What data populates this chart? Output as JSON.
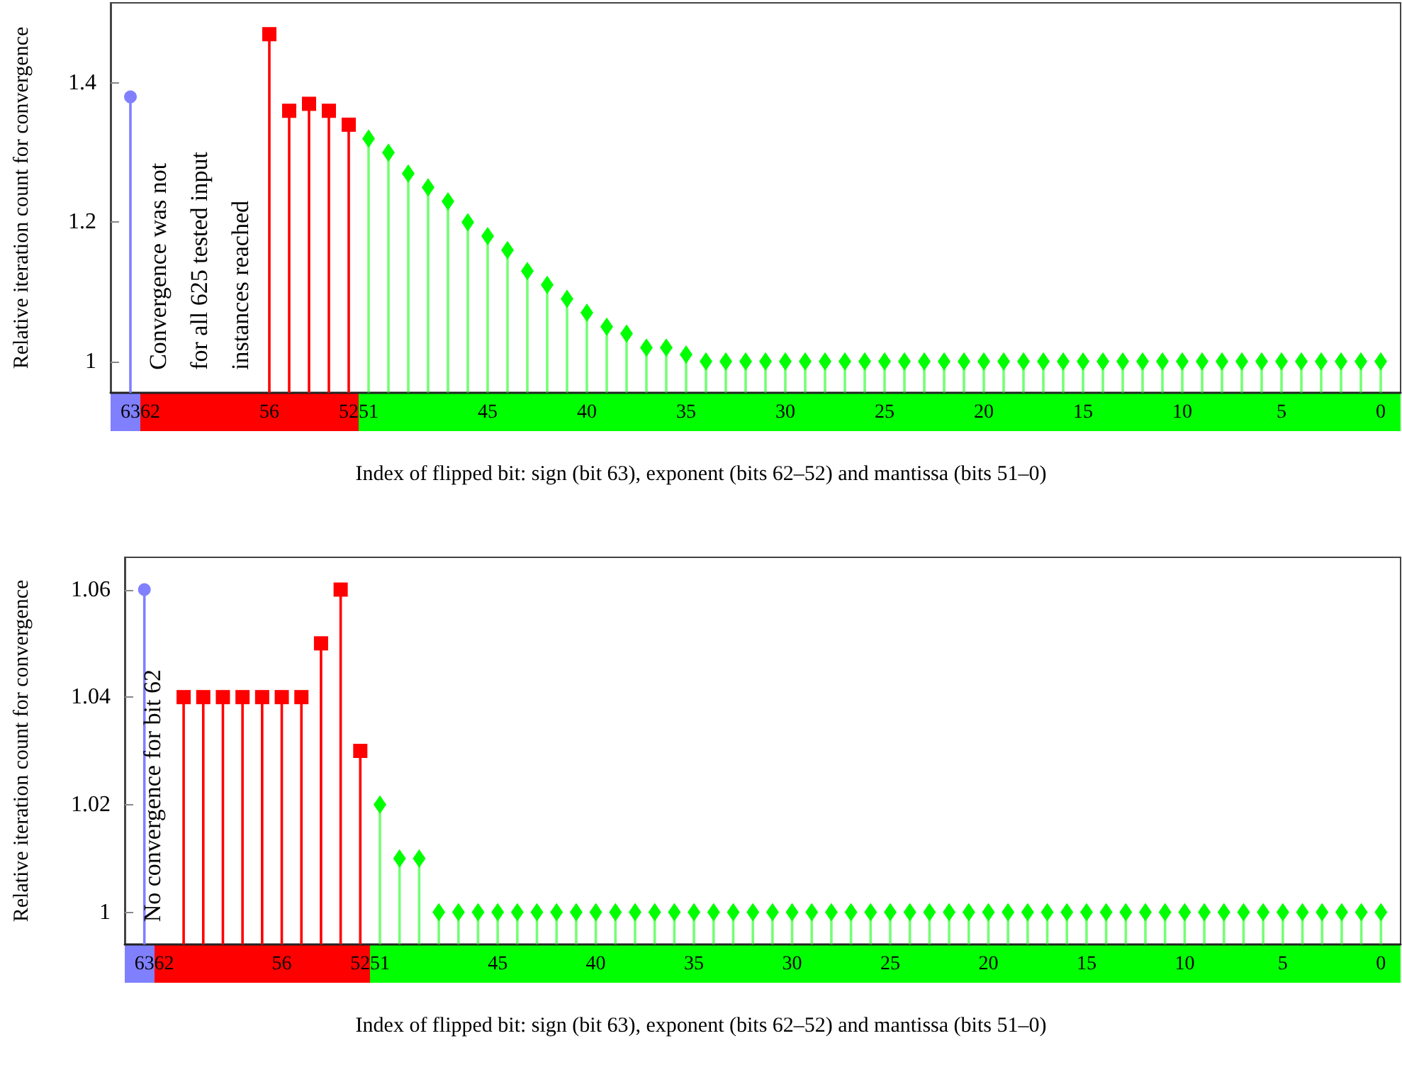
{
  "chart_data": [
    {
      "type": "lollipop",
      "xlabel": "Index of flipped bit: sign (bit 63), exponent (bits 62–52) and mantissa (bits 51–0)",
      "ylabel": "Relative iteration count for convergence",
      "annotations": [
        "Convergence was not\nfor all 625 tested input\ninstances reached"
      ],
      "xlim": [
        64,
        -1
      ],
      "xticks": [
        63,
        62,
        56,
        52,
        51,
        45,
        40,
        35,
        30,
        25,
        20,
        15,
        10,
        5,
        0
      ],
      "ylim": [
        0.955,
        1.515
      ],
      "yticks": [
        1,
        1.2,
        1.4
      ],
      "grid": false,
      "series": [
        {
          "color": "#8080ff",
          "marker": "circle",
          "x": [
            63
          ],
          "values": [
            1.38
          ]
        },
        {
          "color": "#ff0000",
          "marker": "square",
          "x": [
            56,
            55,
            54,
            53,
            52
          ],
          "values": [
            1.47,
            1.36,
            1.37,
            1.36,
            1.34
          ]
        },
        {
          "color": "#00ff00",
          "marker": "diamond",
          "x": [
            51,
            50,
            49,
            48,
            47,
            46,
            45,
            44,
            43,
            42,
            41,
            40,
            39,
            38,
            37,
            36,
            35,
            34,
            33,
            32,
            31,
            30,
            29,
            28,
            27,
            26,
            25,
            24,
            23,
            22,
            21,
            20,
            19,
            18,
            17,
            16,
            15,
            14,
            13,
            12,
            11,
            10,
            9,
            8,
            7,
            6,
            5,
            4,
            3,
            2,
            1,
            0
          ],
          "values": [
            1.32,
            1.3,
            1.27,
            1.25,
            1.23,
            1.2,
            1.18,
            1.16,
            1.13,
            1.11,
            1.09,
            1.07,
            1.05,
            1.04,
            1.02,
            1.02,
            1.01,
            1.0,
            1.0,
            1.0,
            1.0,
            1.0,
            1.0,
            1.0,
            1.0,
            1.0,
            1.0,
            1.0,
            1.0,
            1.0,
            1.0,
            1.0,
            1.0,
            1.0,
            1.0,
            1.0,
            1.0,
            1.0,
            1.0,
            1.0,
            1.0,
            1.0,
            1.0,
            1.0,
            1.0,
            1.0,
            1.0,
            1.0,
            1.0,
            1.0,
            1.0,
            1.0
          ]
        }
      ]
    },
    {
      "type": "lollipop",
      "xlabel": "Index of flipped bit: sign (bit 63), exponent (bits 62–52) and mantissa (bits 51–0)",
      "ylabel": "Relative iteration count for convergence",
      "annotations": [
        "No convergence for bit 62"
      ],
      "xlim": [
        64,
        -1
      ],
      "xticks": [
        63,
        62,
        56,
        52,
        51,
        45,
        40,
        35,
        30,
        25,
        20,
        15,
        10,
        5,
        0
      ],
      "ylim": [
        0.994,
        1.066
      ],
      "yticks": [
        1,
        1.02,
        1.04,
        1.06
      ],
      "grid": false,
      "series": [
        {
          "color": "#8080ff",
          "marker": "circle",
          "x": [
            63
          ],
          "values": [
            1.06
          ]
        },
        {
          "color": "#ff0000",
          "marker": "square",
          "x": [
            61,
            60,
            59,
            58,
            57,
            56,
            55,
            54,
            53,
            52
          ],
          "values": [
            1.04,
            1.04,
            1.04,
            1.04,
            1.04,
            1.04,
            1.04,
            1.05,
            1.06,
            1.03
          ]
        },
        {
          "color": "#00ff00",
          "marker": "diamond",
          "x": [
            51,
            50,
            49,
            48,
            47,
            46,
            45,
            44,
            43,
            42,
            41,
            40,
            39,
            38,
            37,
            36,
            35,
            34,
            33,
            32,
            31,
            30,
            29,
            28,
            27,
            26,
            25,
            24,
            23,
            22,
            21,
            20,
            19,
            18,
            17,
            16,
            15,
            14,
            13,
            12,
            11,
            10,
            9,
            8,
            7,
            6,
            5,
            4,
            3,
            2,
            1,
            0
          ],
          "values": [
            1.02,
            1.01,
            1.01,
            1.0,
            1.0,
            1.0,
            1.0,
            1.0,
            1.0,
            1.0,
            1.0,
            1.0,
            1.0,
            1.0,
            1.0,
            1.0,
            1.0,
            1.0,
            1.0,
            1.0,
            1.0,
            1.0,
            1.0,
            1.0,
            1.0,
            1.0,
            1.0,
            1.0,
            1.0,
            1.0,
            1.0,
            1.0,
            1.0,
            1.0,
            1.0,
            1.0,
            1.0,
            1.0,
            1.0,
            1.0,
            1.0,
            1.0,
            1.0,
            1.0,
            1.0,
            1.0,
            1.0,
            1.0,
            1.0,
            1.0,
            1.0,
            1.0
          ]
        }
      ]
    }
  ]
}
